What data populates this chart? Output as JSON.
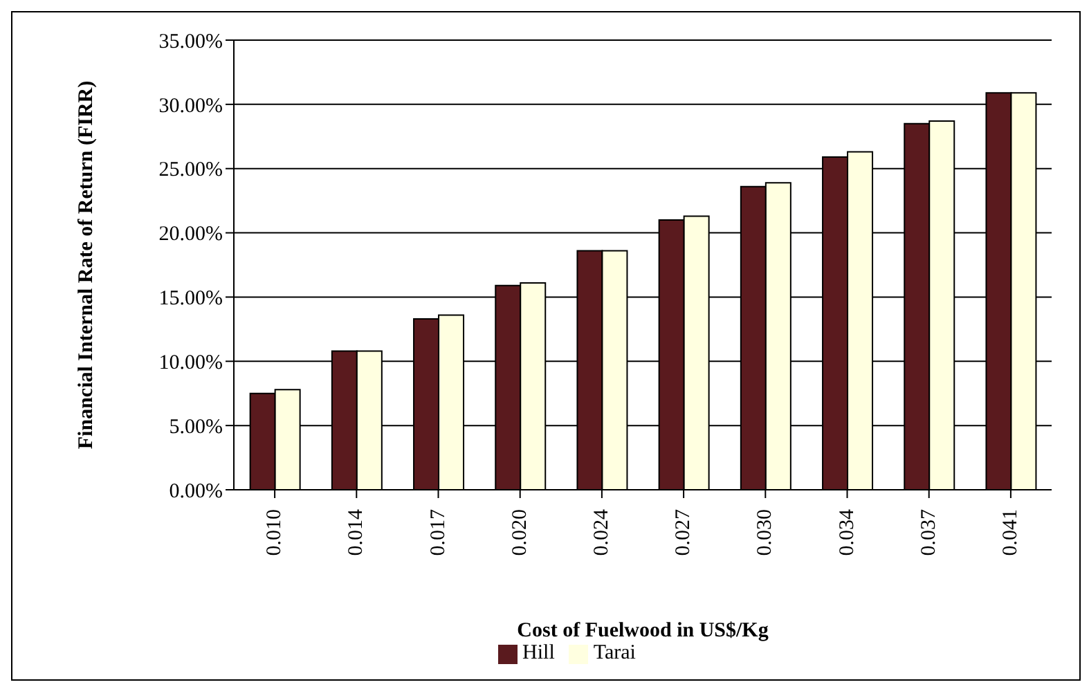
{
  "chart_data": {
    "type": "bar",
    "xlabel": "Cost of Fuelwood in US$/Kg",
    "ylabel": "Financial Internal Rate of Return (FIRR)",
    "categories": [
      "0.010",
      "0.014",
      "0.017",
      "0.020",
      "0.024",
      "0.027",
      "0.030",
      "0.034",
      "0.037",
      "0.041"
    ],
    "series": [
      {
        "name": "Hill",
        "color": "#5a1a1e",
        "values": [
          7.5,
          10.8,
          13.3,
          15.9,
          18.6,
          21.0,
          23.6,
          25.9,
          28.5,
          30.9
        ]
      },
      {
        "name": "Tarai",
        "color": "#ffffe0",
        "values": [
          7.8,
          10.8,
          13.6,
          16.1,
          18.6,
          21.3,
          23.9,
          26.3,
          28.7,
          30.9
        ]
      }
    ],
    "ylim": [
      0,
      35
    ],
    "yticks": [
      {
        "value": 0,
        "label": "0.00%"
      },
      {
        "value": 5,
        "label": "5.00%"
      },
      {
        "value": 10,
        "label": "10.00%"
      },
      {
        "value": 15,
        "label": "15.00%"
      },
      {
        "value": 20,
        "label": "20.00%"
      },
      {
        "value": 25,
        "label": "25.00%"
      },
      {
        "value": 30,
        "label": "30.00%"
      },
      {
        "value": 35,
        "label": "35.00%"
      }
    ],
    "grid": "y",
    "legend": "bottom"
  }
}
